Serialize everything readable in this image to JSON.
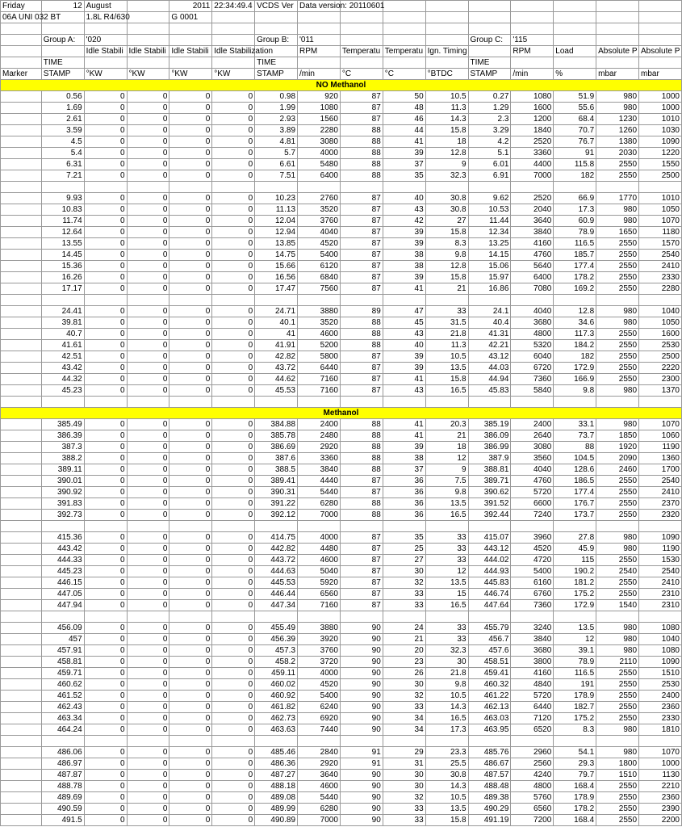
{
  "meta": {
    "day": "Friday",
    "date": "12",
    "month": "August",
    "year": "2011",
    "time": "22:34:49.4",
    "ver": "VCDS Ver",
    "dataver": "Data version: 20110601",
    "ecu1": "06A UNI 032 BT",
    "ecu2": "1.8L R4/630",
    "ecu3": "G   0001"
  },
  "groups": {
    "a_lbl": "Group A:",
    "a_val": "'020",
    "b_lbl": "Group B:",
    "b_val": "'011",
    "c_lbl": "Group C:",
    "c_val": "'115"
  },
  "hdr1": [
    "",
    "",
    "Idle Stabili",
    "Idle Stabili",
    "Idle Stabili",
    "Idle Stabilization",
    "",
    "RPM",
    "Temperatu",
    "Temperatu",
    "Ign. Timing",
    "",
    "RPM",
    "Load",
    "Absolute P",
    "Absolute P"
  ],
  "hdr2": [
    "",
    "TIME",
    "",
    "",
    "",
    "",
    "TIME",
    "",
    "",
    "",
    "",
    "TIME",
    "",
    "",
    "",
    ""
  ],
  "hdr3": [
    "Marker",
    "STAMP",
    "°KW",
    "°KW",
    "°KW",
    "°KW",
    "STAMP",
    "/min",
    "°C",
    "°C",
    "°BTDC",
    "STAMP",
    "/min",
    "%",
    "mbar",
    "mbar"
  ],
  "section1": "NO Methanol",
  "section2": "Methanol",
  "rows1": [
    [
      "0.56",
      "0",
      "0",
      "0",
      "0",
      "0.98",
      "920",
      "87",
      "50",
      "10.5",
      "0.27",
      "1080",
      "51.9",
      "980",
      "1000"
    ],
    [
      "1.69",
      "0",
      "0",
      "0",
      "0",
      "1.99",
      "1080",
      "87",
      "48",
      "11.3",
      "1.29",
      "1600",
      "55.6",
      "980",
      "1000"
    ],
    [
      "2.61",
      "0",
      "0",
      "0",
      "0",
      "2.93",
      "1560",
      "87",
      "46",
      "14.3",
      "2.3",
      "1200",
      "68.4",
      "1230",
      "1010"
    ],
    [
      "3.59",
      "0",
      "0",
      "0",
      "0",
      "3.89",
      "2280",
      "88",
      "44",
      "15.8",
      "3.29",
      "1840",
      "70.7",
      "1260",
      "1030"
    ],
    [
      "4.5",
      "0",
      "0",
      "0",
      "0",
      "4.81",
      "3080",
      "88",
      "41",
      "18",
      "4.2",
      "2520",
      "76.7",
      "1380",
      "1090"
    ],
    [
      "5.4",
      "0",
      "0",
      "0",
      "0",
      "5.7",
      "4000",
      "88",
      "39",
      "12.8",
      "5.1",
      "3360",
      "91",
      "2030",
      "1220"
    ],
    [
      "6.31",
      "0",
      "0",
      "0",
      "0",
      "6.61",
      "5480",
      "88",
      "37",
      "9",
      "6.01",
      "4400",
      "115.8",
      "2550",
      "1550"
    ],
    [
      "7.21",
      "0",
      "0",
      "0",
      "0",
      "7.51",
      "6400",
      "88",
      "35",
      "32.3",
      "6.91",
      "7000",
      "182",
      "2550",
      "2500"
    ]
  ],
  "rows2": [
    [
      "9.93",
      "0",
      "0",
      "0",
      "0",
      "10.23",
      "2760",
      "87",
      "40",
      "30.8",
      "9.62",
      "2520",
      "66.9",
      "1770",
      "1010"
    ],
    [
      "10.83",
      "0",
      "0",
      "0",
      "0",
      "11.13",
      "3520",
      "87",
      "43",
      "30.8",
      "10.53",
      "2040",
      "17.3",
      "980",
      "1050"
    ],
    [
      "11.74",
      "0",
      "0",
      "0",
      "0",
      "12.04",
      "3760",
      "87",
      "42",
      "27",
      "11.44",
      "3640",
      "60.9",
      "980",
      "1070"
    ],
    [
      "12.64",
      "0",
      "0",
      "0",
      "0",
      "12.94",
      "4040",
      "87",
      "39",
      "15.8",
      "12.34",
      "3840",
      "78.9",
      "1650",
      "1180"
    ],
    [
      "13.55",
      "0",
      "0",
      "0",
      "0",
      "13.85",
      "4520",
      "87",
      "39",
      "8.3",
      "13.25",
      "4160",
      "116.5",
      "2550",
      "1570"
    ],
    [
      "14.45",
      "0",
      "0",
      "0",
      "0",
      "14.75",
      "5400",
      "87",
      "38",
      "9.8",
      "14.15",
      "4760",
      "185.7",
      "2550",
      "2540"
    ],
    [
      "15.36",
      "0",
      "0",
      "0",
      "0",
      "15.66",
      "6120",
      "87",
      "38",
      "12.8",
      "15.06",
      "5640",
      "177.4",
      "2550",
      "2410"
    ],
    [
      "16.26",
      "0",
      "0",
      "0",
      "0",
      "16.56",
      "6840",
      "87",
      "39",
      "15.8",
      "15.97",
      "6400",
      "178.2",
      "2550",
      "2330"
    ],
    [
      "17.17",
      "0",
      "0",
      "0",
      "0",
      "17.47",
      "7560",
      "87",
      "41",
      "21",
      "16.86",
      "7080",
      "169.2",
      "2550",
      "2280"
    ]
  ],
  "rows3": [
    [
      "24.41",
      "0",
      "0",
      "0",
      "0",
      "24.71",
      "3880",
      "89",
      "47",
      "33",
      "24.1",
      "4040",
      "12.8",
      "980",
      "1040"
    ],
    [
      "39.81",
      "0",
      "0",
      "0",
      "0",
      "40.1",
      "3520",
      "88",
      "45",
      "31.5",
      "40.4",
      "3680",
      "34.6",
      "980",
      "1050"
    ],
    [
      "40.7",
      "0",
      "0",
      "0",
      "0",
      "41",
      "4600",
      "88",
      "43",
      "21.8",
      "41.31",
      "4800",
      "117.3",
      "2550",
      "1600"
    ],
    [
      "41.61",
      "0",
      "0",
      "0",
      "0",
      "41.91",
      "5200",
      "88",
      "40",
      "11.3",
      "42.21",
      "5320",
      "184.2",
      "2550",
      "2530"
    ],
    [
      "42.51",
      "0",
      "0",
      "0",
      "0",
      "42.82",
      "5800",
      "87",
      "39",
      "10.5",
      "43.12",
      "6040",
      "182",
      "2550",
      "2500"
    ],
    [
      "43.42",
      "0",
      "0",
      "0",
      "0",
      "43.72",
      "6440",
      "87",
      "39",
      "13.5",
      "44.03",
      "6720",
      "172.9",
      "2550",
      "2220"
    ],
    [
      "44.32",
      "0",
      "0",
      "0",
      "0",
      "44.62",
      "7160",
      "87",
      "41",
      "15.8",
      "44.94",
      "7360",
      "166.9",
      "2550",
      "2300"
    ],
    [
      "45.23",
      "0",
      "0",
      "0",
      "0",
      "45.53",
      "7160",
      "87",
      "43",
      "16.5",
      "45.83",
      "5840",
      "9.8",
      "980",
      "1370"
    ]
  ],
  "rows4": [
    [
      "385.49",
      "0",
      "0",
      "0",
      "0",
      "384.88",
      "2400",
      "88",
      "41",
      "20.3",
      "385.19",
      "2400",
      "33.1",
      "980",
      "1070"
    ],
    [
      "386.39",
      "0",
      "0",
      "0",
      "0",
      "385.78",
      "2480",
      "88",
      "41",
      "21",
      "386.09",
      "2640",
      "73.7",
      "1850",
      "1060"
    ],
    [
      "387.3",
      "0",
      "0",
      "0",
      "0",
      "386.69",
      "2920",
      "88",
      "39",
      "18",
      "386.99",
      "3080",
      "88",
      "1920",
      "1190"
    ],
    [
      "388.2",
      "0",
      "0",
      "0",
      "0",
      "387.6",
      "3360",
      "88",
      "38",
      "12",
      "387.9",
      "3560",
      "104.5",
      "2090",
      "1360"
    ],
    [
      "389.11",
      "0",
      "0",
      "0",
      "0",
      "388.5",
      "3840",
      "88",
      "37",
      "9",
      "388.81",
      "4040",
      "128.6",
      "2460",
      "1700"
    ],
    [
      "390.01",
      "0",
      "0",
      "0",
      "0",
      "389.41",
      "4440",
      "87",
      "36",
      "7.5",
      "389.71",
      "4760",
      "186.5",
      "2550",
      "2540"
    ],
    [
      "390.92",
      "0",
      "0",
      "0",
      "0",
      "390.31",
      "5440",
      "87",
      "36",
      "9.8",
      "390.62",
      "5720",
      "177.4",
      "2550",
      "2410"
    ],
    [
      "391.83",
      "0",
      "0",
      "0",
      "0",
      "391.22",
      "6280",
      "88",
      "36",
      "13.5",
      "391.52",
      "6600",
      "176.7",
      "2550",
      "2370"
    ],
    [
      "392.73",
      "0",
      "0",
      "0",
      "0",
      "392.12",
      "7000",
      "88",
      "36",
      "16.5",
      "392.44",
      "7240",
      "173.7",
      "2550",
      "2320"
    ]
  ],
  "rows5": [
    [
      "415.36",
      "0",
      "0",
      "0",
      "0",
      "414.75",
      "4000",
      "87",
      "35",
      "33",
      "415.07",
      "3960",
      "27.8",
      "980",
      "1090"
    ],
    [
      "443.42",
      "0",
      "0",
      "0",
      "0",
      "442.82",
      "4480",
      "87",
      "25",
      "33",
      "443.12",
      "4520",
      "45.9",
      "980",
      "1190"
    ],
    [
      "444.33",
      "0",
      "0",
      "0",
      "0",
      "443.72",
      "4600",
      "87",
      "27",
      "33",
      "444.02",
      "4720",
      "115",
      "2550",
      "1530"
    ],
    [
      "445.23",
      "0",
      "0",
      "0",
      "0",
      "444.63",
      "5040",
      "87",
      "30",
      "12",
      "444.93",
      "5400",
      "190.2",
      "2540",
      "2540"
    ],
    [
      "446.15",
      "0",
      "0",
      "0",
      "0",
      "445.53",
      "5920",
      "87",
      "32",
      "13.5",
      "445.83",
      "6160",
      "181.2",
      "2550",
      "2410"
    ],
    [
      "447.05",
      "0",
      "0",
      "0",
      "0",
      "446.44",
      "6560",
      "87",
      "33",
      "15",
      "446.74",
      "6760",
      "175.2",
      "2550",
      "2310"
    ],
    [
      "447.94",
      "0",
      "0",
      "0",
      "0",
      "447.34",
      "7160",
      "87",
      "33",
      "16.5",
      "447.64",
      "7360",
      "172.9",
      "1540",
      "2310"
    ]
  ],
  "rows6": [
    [
      "456.09",
      "0",
      "0",
      "0",
      "0",
      "455.49",
      "3880",
      "90",
      "24",
      "33",
      "455.79",
      "3240",
      "13.5",
      "980",
      "1080"
    ],
    [
      "457",
      "0",
      "0",
      "0",
      "0",
      "456.39",
      "3920",
      "90",
      "21",
      "33",
      "456.7",
      "3840",
      "12",
      "980",
      "1040"
    ],
    [
      "457.91",
      "0",
      "0",
      "0",
      "0",
      "457.3",
      "3760",
      "90",
      "20",
      "32.3",
      "457.6",
      "3680",
      "39.1",
      "980",
      "1080"
    ],
    [
      "458.81",
      "0",
      "0",
      "0",
      "0",
      "458.2",
      "3720",
      "90",
      "23",
      "30",
      "458.51",
      "3800",
      "78.9",
      "2110",
      "1090"
    ],
    [
      "459.71",
      "0",
      "0",
      "0",
      "0",
      "459.11",
      "4000",
      "90",
      "26",
      "21.8",
      "459.41",
      "4160",
      "116.5",
      "2550",
      "1510"
    ],
    [
      "460.62",
      "0",
      "0",
      "0",
      "0",
      "460.02",
      "4520",
      "90",
      "30",
      "9.8",
      "460.32",
      "4840",
      "191",
      "2550",
      "2530"
    ],
    [
      "461.52",
      "0",
      "0",
      "0",
      "0",
      "460.92",
      "5400",
      "90",
      "32",
      "10.5",
      "461.22",
      "5720",
      "178.9",
      "2550",
      "2400"
    ],
    [
      "462.43",
      "0",
      "0",
      "0",
      "0",
      "461.82",
      "6240",
      "90",
      "33",
      "14.3",
      "462.13",
      "6440",
      "182.7",
      "2550",
      "2360"
    ],
    [
      "463.34",
      "0",
      "0",
      "0",
      "0",
      "462.73",
      "6920",
      "90",
      "34",
      "16.5",
      "463.03",
      "7120",
      "175.2",
      "2550",
      "2330"
    ],
    [
      "464.24",
      "0",
      "0",
      "0",
      "0",
      "463.63",
      "7440",
      "90",
      "34",
      "17.3",
      "463.95",
      "6520",
      "8.3",
      "980",
      "1810"
    ]
  ],
  "rows7": [
    [
      "486.06",
      "0",
      "0",
      "0",
      "0",
      "485.46",
      "2840",
      "91",
      "29",
      "23.3",
      "485.76",
      "2960",
      "54.1",
      "980",
      "1070"
    ],
    [
      "486.97",
      "0",
      "0",
      "0",
      "0",
      "486.36",
      "2920",
      "91",
      "31",
      "25.5",
      "486.67",
      "2560",
      "29.3",
      "1800",
      "1000"
    ],
    [
      "487.87",
      "0",
      "0",
      "0",
      "0",
      "487.27",
      "3640",
      "90",
      "30",
      "30.8",
      "487.57",
      "4240",
      "79.7",
      "1510",
      "1130"
    ],
    [
      "488.78",
      "0",
      "0",
      "0",
      "0",
      "488.18",
      "4600",
      "90",
      "30",
      "14.3",
      "488.48",
      "4800",
      "168.4",
      "2550",
      "2210"
    ],
    [
      "489.69",
      "0",
      "0",
      "0",
      "0",
      "489.08",
      "5440",
      "90",
      "32",
      "10.5",
      "489.38",
      "5760",
      "178.9",
      "2550",
      "2360"
    ],
    [
      "490.59",
      "0",
      "0",
      "0",
      "0",
      "489.99",
      "6280",
      "90",
      "33",
      "13.5",
      "490.29",
      "6560",
      "178.2",
      "2550",
      "2390"
    ],
    [
      "491.5",
      "0",
      "0",
      "0",
      "0",
      "490.89",
      "7000",
      "90",
      "33",
      "15.8",
      "491.19",
      "7200",
      "168.4",
      "2550",
      "2200"
    ]
  ],
  "colors": {
    "bg": "#ffffff",
    "border": "#999999",
    "highlight": "#ffff00"
  }
}
